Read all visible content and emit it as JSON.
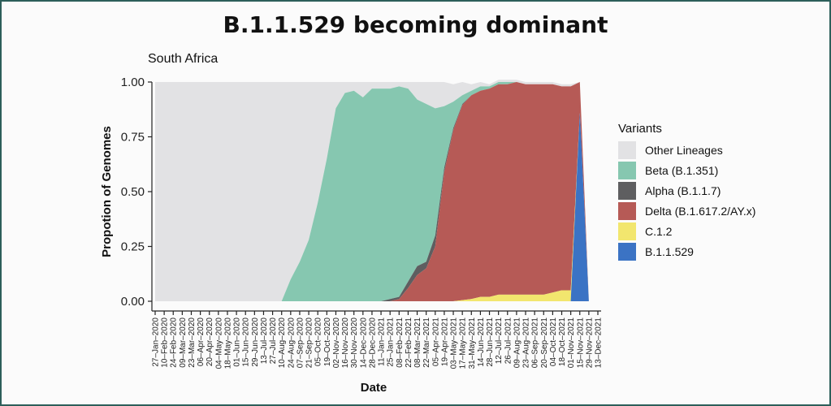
{
  "slide": {
    "title": "B.1.1.529 becoming dominant"
  },
  "chart_data": {
    "type": "area",
    "subtitle": "South Africa",
    "xlabel": "Date",
    "ylabel": "Propotion of Genomes",
    "ylim": [
      0,
      1
    ],
    "y_ticks": [
      "0.00",
      "0.25",
      "0.50",
      "0.75",
      "1.00"
    ],
    "grid": false,
    "stacked": true,
    "legend": {
      "title": "Variants",
      "position": "right"
    },
    "x": [
      "27–Jan–2020",
      "10–Feb–2020",
      "24–Feb–2020",
      "09–Mar–2020",
      "23–Mar–2020",
      "06–Apr–2020",
      "20–Apr–2020",
      "04–May–2020",
      "18–May–2020",
      "01–Jun–2020",
      "15–Jun–2020",
      "29–Jun–2020",
      "13–Jul–2020",
      "27–Jul–2020",
      "10–Aug–2020",
      "24–Aug–2020",
      "07–Sep–2020",
      "21–Sep–2020",
      "05–Oct–2020",
      "19–Oct–2020",
      "02–Nov–2020",
      "16–Nov–2020",
      "30–Nov–2020",
      "14–Dec–2020",
      "28–Dec–2020",
      "11–Jan–2021",
      "25–Jan–2021",
      "08–Feb–2021",
      "22–Feb–2021",
      "08–Mar–2021",
      "22–Mar–2021",
      "05–Apr–2021",
      "19–Apr–2021",
      "03–May–2021",
      "17–May–2021",
      "31–May–2021",
      "14–Jun–2021",
      "28–Jun–2021",
      "12–Jul–2021",
      "26–Jul–2021",
      "09–Aug–2021",
      "23–Aug–2021",
      "06–Sep–2021",
      "20–Sep–2021",
      "04–Oct–2021",
      "18–Oct–2021",
      "01–Nov–2021",
      "15–Nov–2021",
      "29–Nov–2021",
      "13–Dec–2021"
    ],
    "series": [
      {
        "name": "Other Lineages",
        "color": "#e2e2e4",
        "values": [
          1,
          1,
          1,
          1,
          1,
          1,
          1,
          1,
          1,
          1,
          1,
          1,
          1,
          1,
          1,
          0.9,
          0.82,
          0.72,
          0.55,
          0.35,
          0.12,
          0.05,
          0.04,
          0.07,
          0.03,
          0.03,
          0.03,
          0.02,
          0.03,
          0.08,
          0.1,
          0.12,
          0.11,
          0.08,
          0.06,
          0.03,
          0.02,
          0.01,
          0.01,
          0.01,
          0.01,
          0.01,
          0.01,
          0.01,
          0.01,
          0.01,
          0.01,
          0,
          0,
          0
        ]
      },
      {
        "name": "Beta (B.1.351)",
        "color": "#86c7b0",
        "values": [
          0,
          0,
          0,
          0,
          0,
          0,
          0,
          0,
          0,
          0,
          0,
          0,
          0,
          0,
          0,
          0.1,
          0.18,
          0.28,
          0.45,
          0.65,
          0.88,
          0.95,
          0.96,
          0.93,
          0.97,
          0.97,
          0.96,
          0.96,
          0.88,
          0.76,
          0.72,
          0.58,
          0.28,
          0.12,
          0.04,
          0.02,
          0.02,
          0.01,
          0.01,
          0.01,
          0,
          0,
          0,
          0,
          0,
          0,
          0,
          0,
          0,
          0
        ]
      },
      {
        "name": "Alpha (B.1.1.7)",
        "color": "#5e5e60",
        "values": [
          0,
          0,
          0,
          0,
          0,
          0,
          0,
          0,
          0,
          0,
          0,
          0,
          0,
          0,
          0,
          0,
          0,
          0,
          0,
          0,
          0,
          0,
          0,
          0,
          0,
          0,
          0.01,
          0.01,
          0.03,
          0.04,
          0.03,
          0.05,
          0.02,
          0.01,
          0.005,
          0,
          0,
          0,
          0,
          0,
          0,
          0,
          0,
          0,
          0,
          0,
          0,
          0,
          0,
          0
        ]
      },
      {
        "name": "Delta (B.1.617.2/AY.x)",
        "color": "#b65a56",
        "values": [
          0,
          0,
          0,
          0,
          0,
          0,
          0,
          0,
          0,
          0,
          0,
          0,
          0,
          0,
          0,
          0,
          0,
          0,
          0,
          0,
          0,
          0,
          0,
          0,
          0,
          0,
          0,
          0.01,
          0.06,
          0.12,
          0.15,
          0.25,
          0.59,
          0.78,
          0.89,
          0.93,
          0.94,
          0.95,
          0.96,
          0.96,
          0.97,
          0.96,
          0.96,
          0.96,
          0.95,
          0.93,
          0.93,
          0.14,
          0,
          0
        ]
      },
      {
        "name": "C.1.2",
        "color": "#f2e66e",
        "values": [
          0,
          0,
          0,
          0,
          0,
          0,
          0,
          0,
          0,
          0,
          0,
          0,
          0,
          0,
          0,
          0,
          0,
          0,
          0,
          0,
          0,
          0,
          0,
          0,
          0,
          0,
          0,
          0,
          0,
          0,
          0,
          0,
          0,
          0,
          0.005,
          0.01,
          0.02,
          0.02,
          0.03,
          0.03,
          0.03,
          0.03,
          0.03,
          0.03,
          0.04,
          0.05,
          0.05,
          0,
          0,
          0
        ]
      },
      {
        "name": "B.1.1.529",
        "color": "#3b73c4",
        "values": [
          0,
          0,
          0,
          0,
          0,
          0,
          0,
          0,
          0,
          0,
          0,
          0,
          0,
          0,
          0,
          0,
          0,
          0,
          0,
          0,
          0,
          0,
          0,
          0,
          0,
          0,
          0,
          0,
          0,
          0,
          0,
          0,
          0,
          0,
          0,
          0,
          0,
          0,
          0,
          0,
          0,
          0,
          0,
          0,
          0,
          0,
          0,
          0.86,
          0,
          0
        ]
      }
    ]
  }
}
